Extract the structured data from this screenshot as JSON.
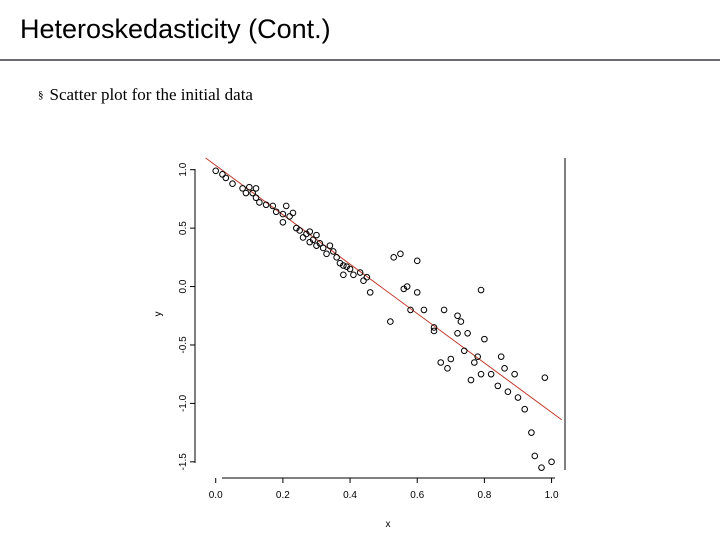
{
  "slide": {
    "title": "Heteroskedasticity (Cont.)",
    "bullet_symbol": "§",
    "bullet_text": "Scatter plot for the initial data"
  },
  "chart_data": {
    "type": "scatter",
    "xlabel": "x",
    "ylabel": "y",
    "xlim": [
      -0.02,
      1.04
    ],
    "ylim": [
      -1.57,
      1.1
    ],
    "x_ticks": [
      0.0,
      0.2,
      0.4,
      0.6,
      0.8,
      1.0
    ],
    "x_tick_labels": [
      "0.0",
      "0.2",
      "0.4",
      "0.6",
      "0.8",
      "1.0"
    ],
    "y_ticks": [
      -1.5,
      -1.0,
      -0.5,
      0.0,
      0.5,
      1.0
    ],
    "y_tick_labels": [
      "-1.5",
      "-1.0",
      "-0.5",
      "0.0",
      "0.5",
      "1.0"
    ],
    "grid": false,
    "point_color": "#000000",
    "line_color": "#c0392b",
    "fit_line": {
      "x": [
        -0.03,
        1.03
      ],
      "y": [
        1.1,
        -1.14
      ]
    },
    "x": [
      0.0,
      0.02,
      0.03,
      0.05,
      0.08,
      0.09,
      0.1,
      0.11,
      0.12,
      0.12,
      0.13,
      0.15,
      0.17,
      0.18,
      0.2,
      0.2,
      0.21,
      0.22,
      0.23,
      0.24,
      0.25,
      0.26,
      0.27,
      0.28,
      0.28,
      0.29,
      0.3,
      0.3,
      0.31,
      0.32,
      0.33,
      0.34,
      0.35,
      0.36,
      0.37,
      0.38,
      0.38,
      0.39,
      0.4,
      0.41,
      0.43,
      0.44,
      0.45,
      0.46,
      0.52,
      0.53,
      0.55,
      0.56,
      0.57,
      0.58,
      0.6,
      0.6,
      0.62,
      0.65,
      0.65,
      0.67,
      0.68,
      0.69,
      0.7,
      0.72,
      0.72,
      0.73,
      0.74,
      0.75,
      0.76,
      0.77,
      0.78,
      0.79,
      0.79,
      0.8,
      0.82,
      0.84,
      0.85,
      0.86,
      0.87,
      0.89,
      0.9,
      0.92,
      0.94,
      0.95,
      0.97,
      0.98,
      1.0
    ],
    "y": [
      0.99,
      0.96,
      0.93,
      0.88,
      0.84,
      0.8,
      0.85,
      0.8,
      0.76,
      0.84,
      0.72,
      0.7,
      0.69,
      0.64,
      0.62,
      0.55,
      0.69,
      0.6,
      0.63,
      0.5,
      0.48,
      0.42,
      0.45,
      0.47,
      0.38,
      0.4,
      0.44,
      0.35,
      0.37,
      0.33,
      0.28,
      0.35,
      0.3,
      0.25,
      0.2,
      0.18,
      0.1,
      0.17,
      0.15,
      0.1,
      0.12,
      0.05,
      0.08,
      -0.05,
      -0.3,
      0.25,
      0.28,
      -0.02,
      0.0,
      -0.2,
      -0.05,
      0.22,
      -0.2,
      -0.38,
      -0.35,
      -0.65,
      -0.2,
      -0.7,
      -0.62,
      -0.25,
      -0.4,
      -0.3,
      -0.55,
      -0.4,
      -0.8,
      -0.65,
      -0.6,
      -0.75,
      -0.03,
      -0.45,
      -0.75,
      -0.85,
      -0.6,
      -0.7,
      -0.9,
      -0.75,
      -0.95,
      -1.05,
      -1.25,
      -1.45,
      -1.55,
      -0.78,
      -1.5
    ]
  }
}
